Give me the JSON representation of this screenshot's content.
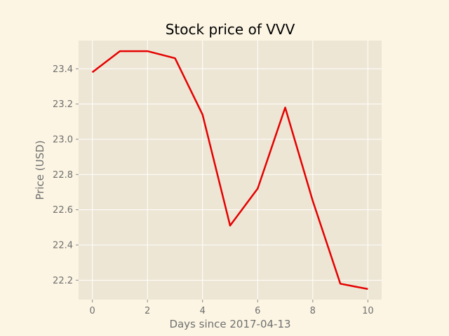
{
  "chart_data": {
    "type": "line",
    "title": "Stock price of VVV",
    "xlabel": "Days since 2017-04-13",
    "ylabel": "Price (USD)",
    "x": [
      0,
      1,
      2,
      3,
      4,
      5,
      6,
      7,
      8,
      9,
      10
    ],
    "series": [
      {
        "values": [
          23.38,
          23.5,
          23.5,
          23.46,
          23.14,
          22.51,
          22.72,
          23.18,
          22.65,
          22.18,
          22.15
        ],
        "color": "#e50000"
      }
    ],
    "xlim": [
      -0.5,
      10.5
    ],
    "ylim": [
      22.09,
      23.56
    ],
    "xticks": [
      0,
      2,
      4,
      6,
      8,
      10
    ],
    "xtick_labels": [
      "0",
      "2",
      "4",
      "6",
      "8",
      "10"
    ],
    "yticks": [
      22.2,
      22.4,
      22.6,
      22.8,
      23.0,
      23.2,
      23.4
    ],
    "ytick_labels": [
      "22.2",
      "22.4",
      "22.6",
      "22.8",
      "23.0",
      "23.2",
      "23.4"
    ],
    "grid": true,
    "legend": "none",
    "colors": {
      "figure_background": "#fcf5e3",
      "plot_background": "#ede6d5",
      "grid": "#ffffff",
      "tick_text": "#6f6f6f",
      "title_text": "#000000"
    }
  }
}
